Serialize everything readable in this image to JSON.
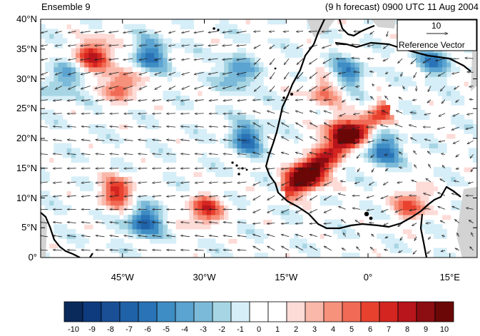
{
  "header": {
    "left_label": "Ensemble 9",
    "right_label": "(9 h forecast) 0900 UTC 11 Aug 2004"
  },
  "map": {
    "lat_ticks": [
      {
        "value": 40,
        "label": "40°N"
      },
      {
        "value": 35,
        "label": "35°N"
      },
      {
        "value": 30,
        "label": "30°N"
      },
      {
        "value": 25,
        "label": "25°N"
      },
      {
        "value": 20,
        "label": "20°N"
      },
      {
        "value": 15,
        "label": "15°N"
      },
      {
        "value": 10,
        "label": "10°N"
      },
      {
        "value": 5,
        "label": "5°N"
      },
      {
        "value": 0,
        "label": "0°"
      }
    ],
    "lon_ticks": [
      {
        "value": -45,
        "label": "45°W"
      },
      {
        "value": -30,
        "label": "30°W"
      },
      {
        "value": -15,
        "label": "15°W"
      },
      {
        "value": 0,
        "label": "0°"
      },
      {
        "value": 15,
        "label": "15°E"
      }
    ],
    "lon_range": [
      -60,
      20
    ],
    "lat_range": [
      0,
      40
    ],
    "reference_vector": {
      "magnitude_label": "10",
      "caption": "Reference Vector"
    },
    "colors": {
      "coast": "#000000",
      "land_mask": "#d3d3d3",
      "arrow": "#222222"
    }
  },
  "colorbar": {
    "levels": [
      "-10",
      "-9",
      "-8",
      "-7",
      "-6",
      "-5",
      "-4",
      "-3",
      "-2",
      "-1",
      "0",
      "1",
      "2",
      "3",
      "4",
      "5",
      "6",
      "7",
      "8",
      "9",
      "10"
    ],
    "colors": [
      "#0a2a5c",
      "#0d3b7d",
      "#1a4f95",
      "#2062a8",
      "#2a73b6",
      "#3e8dc4",
      "#5ba3d0",
      "#7cbad9",
      "#a7d5e3",
      "#d6eef7",
      "#ffffff",
      "#ffffff",
      "#fddbd7",
      "#f9b8aa",
      "#f6917c",
      "#f16a55",
      "#e8422f",
      "#d42520",
      "#b8151c",
      "#8c0d12",
      "#6b0707"
    ]
  },
  "chart_data": {
    "type": "heatmap",
    "title": "(9 h forecast) 0900 UTC 11 Aug 2004",
    "panel_label": "Ensemble 9",
    "x_axis": {
      "range": [
        -60,
        20
      ],
      "ticks": [
        "45°W",
        "30°W",
        "15°W",
        "0°",
        "15°E"
      ]
    },
    "y_axis": {
      "range": [
        0,
        40
      ],
      "ticks": [
        "0°",
        "5°N",
        "10°N",
        "15°N",
        "20°N",
        "25°N",
        "30°N",
        "35°N",
        "40°N"
      ]
    },
    "colorbar_levels": [
      -10,
      -9,
      -8,
      -7,
      -6,
      -5,
      -4,
      -3,
      -2,
      -1,
      0,
      1,
      2,
      3,
      4,
      5,
      6,
      7,
      8,
      9,
      10
    ],
    "overlay": "wind vectors",
    "reference_vector_magnitude": 10,
    "features": [
      {
        "kind": "max",
        "lon": -11,
        "lat": 14,
        "value": 9
      },
      {
        "kind": "max",
        "lon": -5,
        "lat": 21,
        "value": 8
      },
      {
        "kind": "max",
        "lon": -50,
        "lat": 34,
        "value": 8
      },
      {
        "kind": "max",
        "lon": -46,
        "lat": 11,
        "value": 7
      },
      {
        "kind": "max",
        "lon": -30,
        "lat": 8,
        "value": 7
      },
      {
        "kind": "max",
        "lon": 8,
        "lat": 9,
        "value": 6
      },
      {
        "kind": "max",
        "lon": -45,
        "lat": 29,
        "value": 6
      },
      {
        "kind": "max",
        "lon": -8,
        "lat": 28,
        "value": 5
      },
      {
        "kind": "min",
        "lon": -40,
        "lat": 34,
        "value": -6
      },
      {
        "kind": "min",
        "lon": -24,
        "lat": 31,
        "value": -5
      },
      {
        "kind": "min",
        "lon": -41,
        "lat": 6,
        "value": -7
      },
      {
        "kind": "min",
        "lon": -22,
        "lat": 20,
        "value": -6
      },
      {
        "kind": "min",
        "lon": -4,
        "lat": 31,
        "value": -5
      },
      {
        "kind": "min",
        "lon": 3,
        "lat": 18,
        "value": -6
      },
      {
        "kind": "min",
        "lon": 12,
        "lat": 33,
        "value": -5
      },
      {
        "kind": "min",
        "lon": -56,
        "lat": 30,
        "value": -4
      }
    ]
  }
}
